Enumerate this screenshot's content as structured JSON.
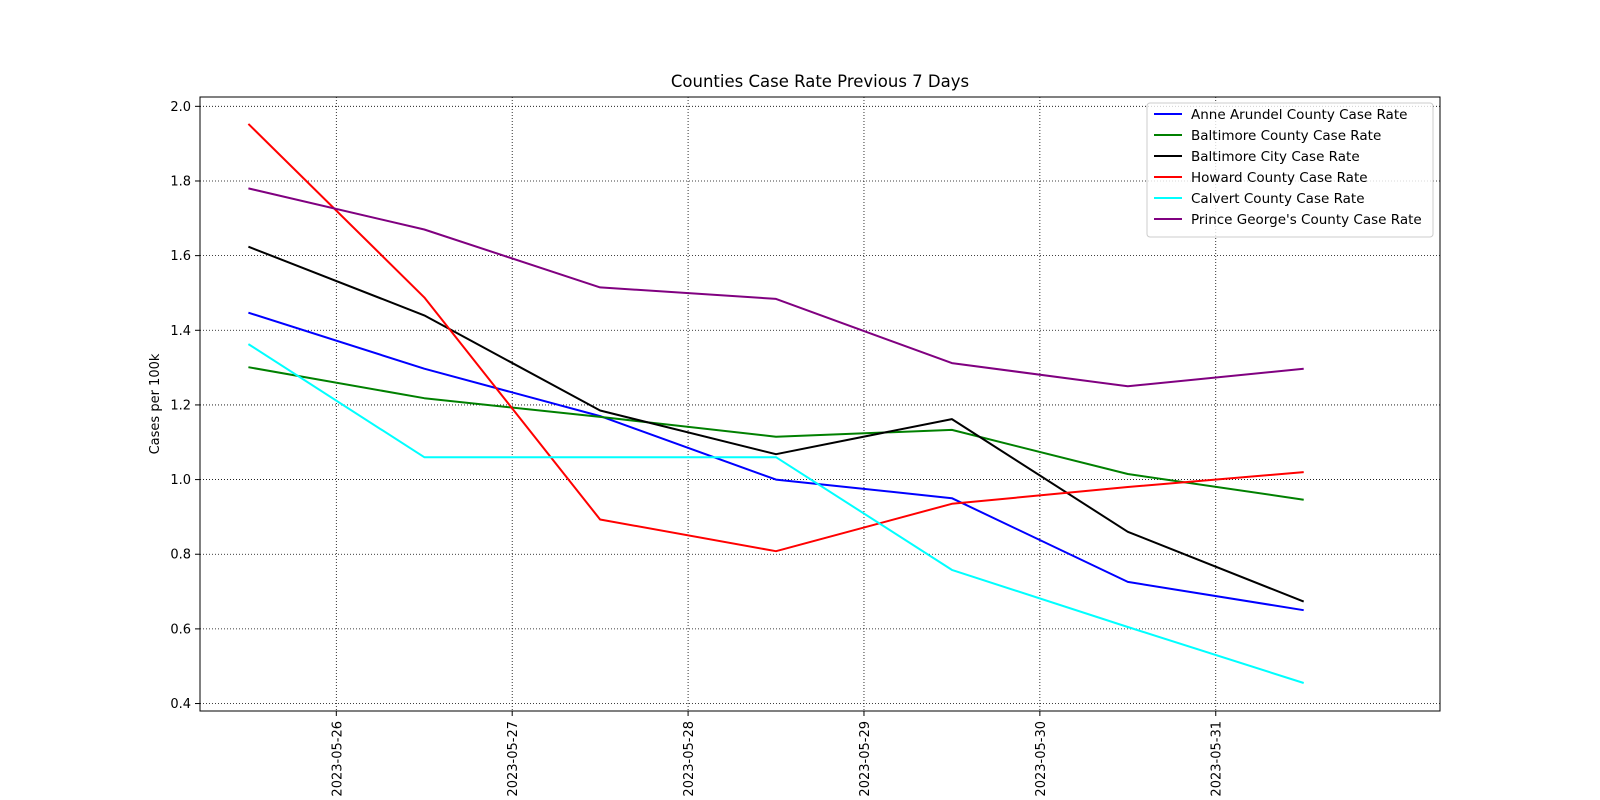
{
  "chart_data": {
    "type": "line",
    "title": "Counties Case Rate Previous 7 Days",
    "xlabel": "",
    "ylabel": "Cases per 100k",
    "x": [
      "2023-05-25 12:00",
      "2023-05-26 12:00",
      "2023-05-27 12:00",
      "2023-05-28 12:00",
      "2023-05-29 12:00",
      "2023-05-30 12:00",
      "2023-05-31 12:00"
    ],
    "xticks": [
      "2023-05-26",
      "2023-05-27",
      "2023-05-28",
      "2023-05-29",
      "2023-05-30",
      "2023-05-31"
    ],
    "xlim": [
      "2023-05-25 05:24",
      "2023-06-01 06:36"
    ],
    "yticks": [
      "0.4",
      "0.6",
      "0.8",
      "1.0",
      "1.2",
      "1.4",
      "1.6",
      "1.8",
      "2.0"
    ],
    "ylim": [
      0.38,
      2.025
    ],
    "grid": true,
    "legend_position": "top-right",
    "series": [
      {
        "name": "Anne Arundel County Case Rate",
        "color": "#0000ff",
        "values": [
          1.447,
          1.297,
          1.17,
          1.0,
          0.95,
          0.726,
          0.65
        ]
      },
      {
        "name": "Baltimore County Case Rate",
        "color": "#008000",
        "values": [
          1.301,
          1.218,
          1.168,
          1.115,
          1.133,
          1.015,
          0.946
        ]
      },
      {
        "name": "Baltimore City Case Rate",
        "color": "#000000",
        "values": [
          1.624,
          1.44,
          1.185,
          1.068,
          1.162,
          0.86,
          0.673
        ]
      },
      {
        "name": "Howard County Case Rate",
        "color": "#ff0000",
        "values": [
          1.953,
          1.488,
          0.893,
          0.808,
          0.935,
          0.98,
          1.02
        ]
      },
      {
        "name": "Calvert County Case Rate",
        "color": "#00ffff",
        "values": [
          1.363,
          1.06,
          1.06,
          1.06,
          0.758,
          0.605,
          0.455
        ]
      },
      {
        "name": "Prince George's County Case Rate",
        "color": "#800080",
        "values": [
          1.78,
          1.67,
          1.515,
          1.484,
          1.312,
          1.25,
          1.297
        ]
      }
    ]
  }
}
